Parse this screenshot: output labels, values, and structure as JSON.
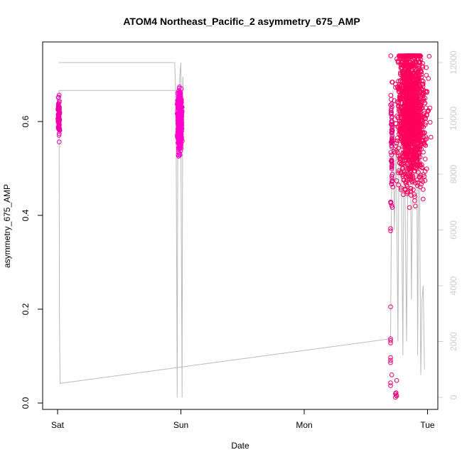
{
  "chart_data": {
    "type": "scatter",
    "title": "ATOM4 Northeast_Pacific_2 asymmetry_675_AMP",
    "xlabel": "Date",
    "ylabel": "asymmetry_675_AMP",
    "x_ticks": [
      "Sat",
      "Sun",
      "Mon",
      "Tue"
    ],
    "x_range_days": [
      -0.03,
      3.1
    ],
    "y_left": {
      "ticks": [
        "0.0",
        "0.2",
        "0.4",
        "0.6"
      ],
      "range": [
        0,
        0.75
      ]
    },
    "y_right": {
      "ticks": [
        "0",
        "2000",
        "4000",
        "6000",
        "8000",
        "10000",
        "12000"
      ],
      "range": [
        0,
        12500
      ],
      "color": "#cccccc"
    },
    "series": [
      {
        "role": "points",
        "clusters": [
          {
            "x_center": 0.01,
            "x_spread": 0.008,
            "y_min": 0.535,
            "y_max": 0.735,
            "y_mean": 0.61,
            "count": 80,
            "color": "#ee00aa"
          },
          {
            "x_center": 0.99,
            "x_spread": 0.018,
            "y_min": 0.44,
            "y_max": 0.72,
            "y_mean": 0.6,
            "count": 600,
            "color": "#ff00cc"
          },
          {
            "x_center": 2.71,
            "x_spread": 0.008,
            "y_min": 0.03,
            "y_max": 0.715,
            "y_mean": 0.55,
            "count": 70,
            "color": "#e6007a"
          },
          {
            "x_center": 2.87,
            "x_spread": 0.12,
            "y_min": 0.0,
            "y_max": 0.74,
            "y_mean": 0.62,
            "count": 1500,
            "color": "#ff005a"
          }
        ],
        "outliers": [
          {
            "x": 2.7,
            "y": 0.372
          },
          {
            "x": 2.7,
            "y": 0.367
          },
          {
            "x": 2.7,
            "y": 0.205
          },
          {
            "x": 2.7,
            "y": 0.137
          },
          {
            "x": 2.7,
            "y": 0.133
          },
          {
            "x": 2.7,
            "y": 0.128
          },
          {
            "x": 2.7,
            "y": 0.097
          },
          {
            "x": 2.7,
            "y": 0.091
          },
          {
            "x": 2.7,
            "y": 0.086
          },
          {
            "x": 2.71,
            "y": 0.06
          },
          {
            "x": 2.7,
            "y": 0.043
          },
          {
            "x": 2.7,
            "y": 0.037
          },
          {
            "x": 2.74,
            "y": 0.02
          },
          {
            "x": 2.745,
            "y": 0.017
          },
          {
            "x": 2.75,
            "y": 0.015
          },
          {
            "x": 2.74,
            "y": 0.012
          },
          {
            "x": 2.745,
            "y": 0.022
          },
          {
            "x": 2.75,
            "y": 0.048
          }
        ]
      },
      {
        "role": "line",
        "axis": "right",
        "color": "#bbbbbb",
        "points": [
          [
            0.01,
            12000
          ],
          [
            0.95,
            12000
          ],
          [
            0.96,
            10500
          ],
          [
            0.97,
            0
          ],
          [
            0.975,
            10000
          ],
          [
            0.985,
            9000
          ],
          [
            0.99,
            11500
          ],
          [
            1.0,
            12000
          ],
          [
            1.0,
            9000
          ],
          [
            1.01,
            0
          ],
          [
            1.015,
            11500
          ],
          [
            1.02,
            11000
          ],
          [
            0.012,
            11000
          ],
          [
            0.015,
            3000
          ],
          [
            0.02,
            500
          ],
          [
            2.7,
            2100
          ],
          [
            2.71,
            8500
          ],
          [
            2.72,
            11000
          ],
          [
            2.73,
            6000
          ],
          [
            2.745,
            9000
          ],
          [
            2.76,
            2000
          ],
          [
            2.77,
            11000
          ],
          [
            2.785,
            9500
          ],
          [
            2.8,
            1500
          ],
          [
            2.81,
            10500
          ],
          [
            2.83,
            2000
          ],
          [
            2.845,
            11000
          ],
          [
            2.86,
            9500
          ],
          [
            2.87,
            3500
          ],
          [
            2.885,
            11000
          ],
          [
            2.9,
            9500
          ],
          [
            2.91,
            12000
          ],
          [
            2.92,
            1500
          ],
          [
            2.93,
            11000
          ],
          [
            2.945,
            800
          ],
          [
            2.955,
            3500
          ],
          [
            2.965,
            4000
          ],
          [
            2.975,
            1000
          ]
        ]
      }
    ]
  }
}
